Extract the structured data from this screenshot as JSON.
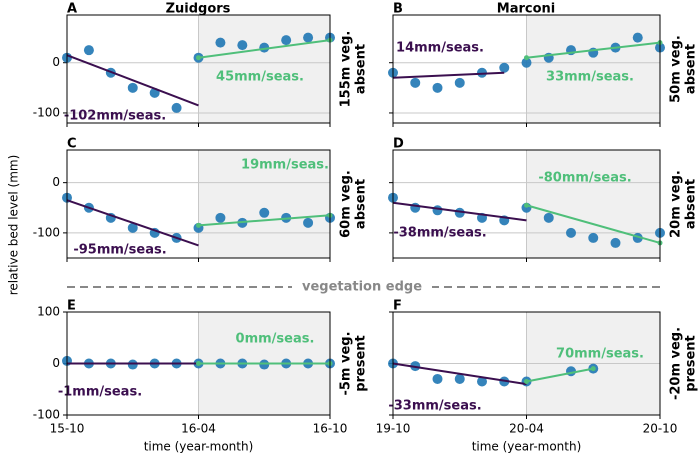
{
  "column_titles": [
    "Zuidgors",
    "Marconi"
  ],
  "y_label": "relative bed level (mm)",
  "separator": "vegetation edge",
  "chart_data": [
    {
      "type": "scatter",
      "panel": "A",
      "side_label": [
        "155m veg.",
        "absent"
      ],
      "color": "#1f77b4",
      "x": [
        "15-10",
        "15-11",
        "15-12",
        "16-01",
        "16-02",
        "16-03",
        "16-04",
        "16-05",
        "16-06",
        "16-07",
        "16-08",
        "16-09",
        "16-10"
      ],
      "values": [
        10,
        25,
        -20,
        -50,
        -60,
        -90,
        10,
        40,
        35,
        30,
        45,
        50,
        50
      ],
      "xlim": [
        "15-10",
        "16-10"
      ],
      "xticks": [
        "15-10",
        "16-04",
        "16-10"
      ],
      "ylim": [
        -120,
        95
      ],
      "yticks": [
        -100,
        0
      ],
      "shaded_from": "16-04",
      "trends": [
        {
          "x": [
            "15-10",
            "16-04"
          ],
          "values": [
            15,
            -85
          ],
          "color": "#3b0f4f",
          "label": "-102mm/seas."
        },
        {
          "x": [
            "16-04",
            "16-10"
          ],
          "values": [
            10,
            45
          ],
          "color": "#4fbf7a",
          "label": "45mm/seas."
        }
      ]
    },
    {
      "type": "scatter",
      "panel": "B",
      "side_label": [
        "50m veg.",
        "absent"
      ],
      "color": "#1f77b4",
      "x": [
        "19-10",
        "19-11",
        "19-12",
        "20-01",
        "20-02",
        "20-03",
        "20-04",
        "20-05",
        "20-06",
        "20-07",
        "20-08",
        "20-09",
        "20-10"
      ],
      "values": [
        -20,
        -40,
        -50,
        -40,
        -20,
        -10,
        0,
        10,
        25,
        20,
        30,
        50,
        30
      ],
      "xlim": [
        "19-10",
        "20-10"
      ],
      "xticks": [
        "19-10",
        "20-04",
        "20-10"
      ],
      "ylim": [
        -120,
        95
      ],
      "yticks": [
        -100,
        0
      ],
      "shaded_from": "20-04",
      "trends": [
        {
          "x": [
            "19-10",
            "20-03"
          ],
          "values": [
            -30,
            -20
          ],
          "color": "#3b0f4f",
          "label": "14mm/seas."
        },
        {
          "x": [
            "20-04",
            "20-10"
          ],
          "values": [
            10,
            40
          ],
          "color": "#4fbf7a",
          "label": "33mm/seas."
        }
      ]
    },
    {
      "type": "scatter",
      "panel": "C",
      "side_label": [
        "60m veg.",
        "absent"
      ],
      "color": "#1f77b4",
      "x": [
        "15-10",
        "15-11",
        "15-12",
        "16-01",
        "16-02",
        "16-03",
        "16-04",
        "16-05",
        "16-06",
        "16-07",
        "16-08",
        "16-09",
        "16-10"
      ],
      "values": [
        -30,
        -50,
        -70,
        -90,
        -100,
        -110,
        -90,
        -70,
        -80,
        -60,
        -70,
        -80,
        -70
      ],
      "xlim": [
        "15-10",
        "16-10"
      ],
      "xticks": [
        "15-10",
        "16-04",
        "16-10"
      ],
      "ylim": [
        -150,
        65
      ],
      "yticks": [
        -100,
        0
      ],
      "shaded_from": "16-04",
      "trends": [
        {
          "x": [
            "15-10",
            "16-04"
          ],
          "values": [
            -35,
            -125
          ],
          "color": "#3b0f4f",
          "label": "-95mm/seas."
        },
        {
          "x": [
            "16-04",
            "16-10"
          ],
          "values": [
            -85,
            -65
          ],
          "color": "#4fbf7a",
          "label": "19mm/seas."
        }
      ]
    },
    {
      "type": "scatter",
      "panel": "D",
      "side_label": [
        "20m veg.",
        "absent"
      ],
      "color": "#1f77b4",
      "x": [
        "19-10",
        "19-11",
        "19-12",
        "20-01",
        "20-02",
        "20-03",
        "20-04",
        "20-05",
        "20-06",
        "20-07",
        "20-08",
        "20-09",
        "20-10"
      ],
      "values": [
        -30,
        -50,
        -55,
        -60,
        -70,
        -75,
        -50,
        -70,
        -100,
        -110,
        -120,
        -110,
        -100
      ],
      "xlim": [
        "19-10",
        "20-10"
      ],
      "xticks": [
        "19-10",
        "20-04",
        "20-10"
      ],
      "ylim": [
        -150,
        65
      ],
      "yticks": [
        -100,
        0
      ],
      "shaded_from": "20-04",
      "trends": [
        {
          "x": [
            "19-10",
            "20-04"
          ],
          "values": [
            -40,
            -75
          ],
          "color": "#3b0f4f",
          "label": "-38mm/seas."
        },
        {
          "x": [
            "20-04",
            "20-10"
          ],
          "values": [
            -45,
            -120
          ],
          "color": "#4fbf7a",
          "label": "-80mm/seas."
        }
      ]
    },
    {
      "type": "scatter",
      "panel": "E",
      "side_label": [
        "-5m veg.",
        "present"
      ],
      "color": "#1f77b4",
      "x_label": "time (year-month)",
      "x": [
        "15-10",
        "15-11",
        "15-12",
        "16-01",
        "16-02",
        "16-03",
        "16-04",
        "16-05",
        "16-06",
        "16-07",
        "16-08",
        "16-09",
        "16-10"
      ],
      "values": [
        5,
        0,
        0,
        -2,
        0,
        0,
        0,
        0,
        0,
        -2,
        0,
        0,
        0
      ],
      "xlim": [
        "15-10",
        "16-10"
      ],
      "xticks": [
        "15-10",
        "16-04",
        "16-10"
      ],
      "ylim": [
        -100,
        100
      ],
      "yticks": [
        -100,
        0,
        100
      ],
      "shaded_from": "16-04",
      "trends": [
        {
          "x": [
            "15-10",
            "16-04"
          ],
          "values": [
            0,
            0
          ],
          "color": "#3b0f4f",
          "label": "-1mm/seas."
        },
        {
          "x": [
            "16-04",
            "16-10"
          ],
          "values": [
            0,
            0
          ],
          "color": "#4fbf7a",
          "label": "0mm/seas."
        }
      ]
    },
    {
      "type": "scatter",
      "panel": "F",
      "side_label": [
        "-20m veg.",
        "present"
      ],
      "color": "#1f77b4",
      "x_label": "time (year-month)",
      "x": [
        "19-10",
        "19-11",
        "19-12",
        "20-01",
        "20-02",
        "20-03",
        "20-04",
        "20-05",
        "20-06",
        "20-07",
        "20-08",
        "20-09",
        "20-10"
      ],
      "values": [
        0,
        -5,
        -30,
        -30,
        -35,
        -35,
        -35,
        null,
        -15,
        -10,
        null,
        null,
        null
      ],
      "xlim": [
        "19-10",
        "20-10"
      ],
      "xticks": [
        "19-10",
        "20-04",
        "20-10"
      ],
      "ylim": [
        -100,
        100
      ],
      "yticks": [
        -100,
        0,
        100
      ],
      "shaded_from": "20-04",
      "trends": [
        {
          "x": [
            "19-10",
            "20-04"
          ],
          "values": [
            0,
            -40
          ],
          "color": "#3b0f4f",
          "label": "-33mm/seas."
        },
        {
          "x": [
            "20-04",
            "20-07"
          ],
          "values": [
            -35,
            -10
          ],
          "color": "#4fbf7a",
          "label": "70mm/seas."
        }
      ]
    }
  ]
}
